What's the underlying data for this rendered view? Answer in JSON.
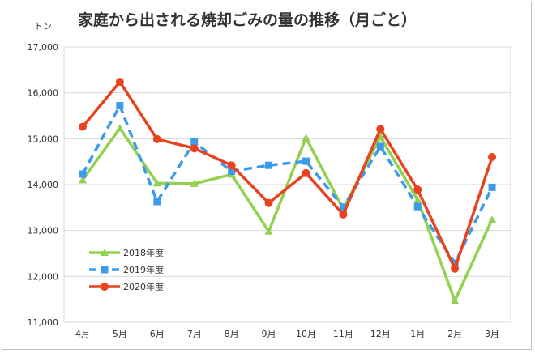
{
  "chart_data": {
    "type": "line",
    "title": "家庭から出される焼却ごみの量の推移（月ごと）",
    "ylabel": "トン",
    "xlabel": "",
    "ylim": [
      11000,
      17000
    ],
    "yticks": [
      11000,
      12000,
      13000,
      14000,
      15000,
      16000,
      17000
    ],
    "ytick_labels": [
      "11,000",
      "12,000",
      "13,000",
      "14,000",
      "15,000",
      "16,000",
      "17,000"
    ],
    "categories": [
      "4月",
      "5月",
      "6月",
      "7月",
      "8月",
      "9月",
      "10月",
      "11月",
      "12月",
      "1月",
      "2月",
      "3月"
    ],
    "grid": true,
    "legend_position": "bottom-left",
    "series": [
      {
        "name": "2018年度",
        "color": "#92d050",
        "marker": "triangle",
        "dash": "solid",
        "values": [
          14100,
          15230,
          14030,
          14020,
          14220,
          12980,
          15020,
          13470,
          15040,
          13670,
          11470,
          13240
        ]
      },
      {
        "name": "2019年度",
        "color": "#3d9be9",
        "marker": "square",
        "dash": "dashed",
        "values": [
          14230,
          15720,
          13630,
          14930,
          14290,
          14420,
          14510,
          13510,
          14830,
          13520,
          12290,
          13940
        ]
      },
      {
        "name": "2020年度",
        "color": "#e8421e",
        "marker": "circle",
        "dash": "solid",
        "values": [
          15260,
          16240,
          14990,
          14790,
          14420,
          13600,
          14250,
          13350,
          15210,
          13890,
          12170,
          14600
        ]
      }
    ]
  }
}
